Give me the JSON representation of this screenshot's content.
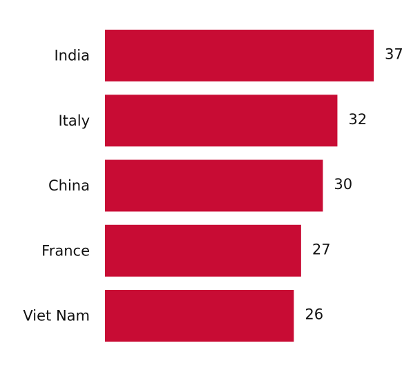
{
  "chart_data": {
    "type": "barh",
    "categories": [
      "India",
      "Italy",
      "China",
      "France",
      "Viet Nam"
    ],
    "values": [
      37,
      32,
      30,
      27,
      26
    ],
    "color": "#c80c34"
  }
}
